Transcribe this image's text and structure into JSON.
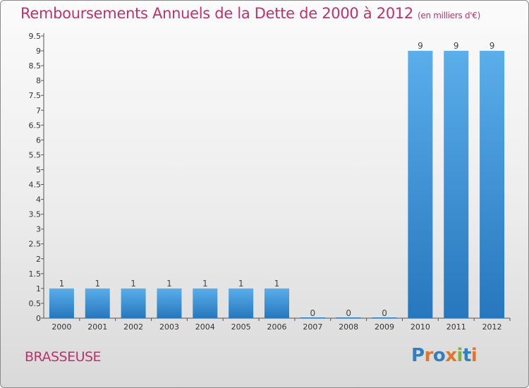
{
  "header": {
    "title": "Remboursements Annuels de la Dette de 2000 à 2012",
    "subtitle": "(en milliers d'€)"
  },
  "footer": {
    "place": "BRASSEUSE",
    "logo": "Proxiti"
  },
  "colors": {
    "title": "#c0306e",
    "bar_top": "#5aaeea",
    "bar_bottom": "#2677bd",
    "logo": [
      "#2f7fc1",
      "#e0762a",
      "#2f7fc1",
      "#e0762a",
      "#7fb23a",
      "#2f7fc1",
      "#e0762a"
    ]
  },
  "chart_data": {
    "type": "bar",
    "title": "Remboursements Annuels de la Dette de 2000 à 2012",
    "subtitle": "(en milliers d'€)",
    "categories": [
      "2000",
      "2001",
      "2002",
      "2003",
      "2004",
      "2005",
      "2006",
      "2007",
      "2008",
      "2009",
      "2010",
      "2011",
      "2012"
    ],
    "values": [
      1,
      1,
      1,
      1,
      1,
      1,
      1,
      0,
      0,
      0,
      9,
      9,
      9
    ],
    "data_labels": [
      "1",
      "1",
      "1",
      "1",
      "1",
      "1",
      "1",
      "0",
      "0",
      "0",
      "9",
      "9",
      "9"
    ],
    "yticks": [
      "0",
      "0.5",
      "1",
      "1.5",
      "2",
      "2.5",
      "3",
      "3.5",
      "4",
      "4.5",
      "5",
      "5.5",
      "6",
      "6.5",
      "7",
      "7.5",
      "8",
      "8.5",
      "9",
      "9.5"
    ],
    "ylim": [
      0,
      9.5
    ],
    "xlabel": "",
    "ylabel": "",
    "grid": false,
    "legend": "none"
  }
}
